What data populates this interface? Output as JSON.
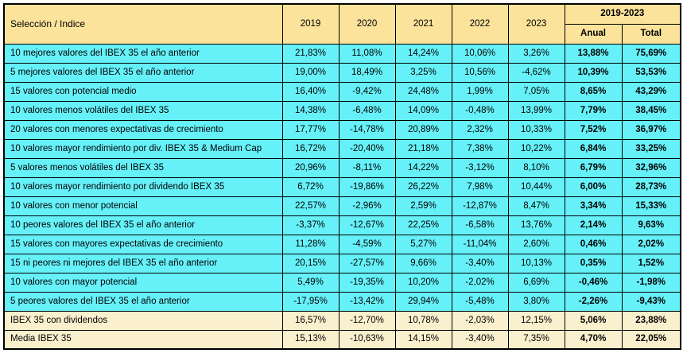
{
  "colors": {
    "header_bg": "#FBE39B",
    "data_row_bg": "#66F1F9",
    "summary_row_bg": "#FBF0CD",
    "border": "#000000",
    "text": "#000000"
  },
  "table": {
    "corner_label": "Selección / Indice",
    "year_headers": [
      "2019",
      "2020",
      "2021",
      "2022",
      "2023"
    ],
    "group_header": "2019-2023",
    "sub_headers": [
      "Anual",
      "Total"
    ],
    "rows": [
      {
        "label": "10 mejores valores del IBEX 35 el año anterior",
        "style": "data",
        "values": [
          "21,83%",
          "11,08%",
          "14,24%",
          "10,06%",
          "3,26%",
          "13,88%",
          "75,69%"
        ]
      },
      {
        "label": "5 mejores valores del IBEX 35 el año anterior",
        "style": "data",
        "values": [
          "19,00%",
          "18,49%",
          "3,25%",
          "10,56%",
          "-4,62%",
          "10,39%",
          "53,53%"
        ]
      },
      {
        "label": "15 valores con potencial medio",
        "style": "data",
        "values": [
          "16,40%",
          "-9,42%",
          "24,48%",
          "1,99%",
          "7,05%",
          "8,65%",
          "43,29%"
        ]
      },
      {
        "label": "10 valores menos volátiles del IBEX 35",
        "style": "data",
        "values": [
          "14,38%",
          "-6,48%",
          "14,09%",
          "-0,48%",
          "13,99%",
          "7,79%",
          "38,45%"
        ]
      },
      {
        "label": "20 valores con menores expectativas de crecimiento",
        "style": "data",
        "values": [
          "17,77%",
          "-14,78%",
          "20,89%",
          "2,32%",
          "10,33%",
          "7,52%",
          "36,97%"
        ]
      },
      {
        "label": "10 valores mayor rendimiento por div. IBEX 35 & Medium Cap",
        "style": "data",
        "values": [
          "16,72%",
          "-20,40%",
          "21,18%",
          "7,38%",
          "10,22%",
          "6,84%",
          "33,25%"
        ]
      },
      {
        "label": "5 valores menos volátiles del IBEX 35",
        "style": "data",
        "values": [
          "20,96%",
          "-8,11%",
          "14,22%",
          "-3,12%",
          "8,10%",
          "6,79%",
          "32,96%"
        ]
      },
      {
        "label": "10 valores mayor rendimiento por dividendo IBEX 35",
        "style": "data",
        "values": [
          "6,72%",
          "-19,86%",
          "26,22%",
          "7,98%",
          "10,44%",
          "6,00%",
          "28,73%"
        ]
      },
      {
        "label": "10 valores con menor potencial",
        "style": "data",
        "values": [
          "22,57%",
          "-2,96%",
          "2,59%",
          "-12,87%",
          "8,47%",
          "3,34%",
          "15,33%"
        ]
      },
      {
        "label": "10 peores valores del IBEX 35 el año anterior",
        "style": "data",
        "values": [
          "-3,37%",
          "-12,67%",
          "22,25%",
          "-6,58%",
          "13,76%",
          "2,14%",
          "9,63%"
        ]
      },
      {
        "label": "15 valores con mayores expectativas de crecimiento",
        "style": "data",
        "values": [
          "11,28%",
          "-4,59%",
          "5,27%",
          "-11,04%",
          "2,60%",
          "0,46%",
          "2,02%"
        ]
      },
      {
        "label": "15 ni peores ni mejores del IBEX 35 el año anterior",
        "style": "data",
        "values": [
          "20,15%",
          "-27,57%",
          "9,66%",
          "-3,40%",
          "10,13%",
          "0,35%",
          "1,52%"
        ]
      },
      {
        "label": "10 valores con mayor potencial",
        "style": "data",
        "values": [
          "5,49%",
          "-19,35%",
          "10,20%",
          "-2,02%",
          "6,69%",
          "-0,46%",
          "-1,98%"
        ]
      },
      {
        "label": "5 peores valores del IBEX 35 el año anterior",
        "style": "data",
        "values": [
          "-17,95%",
          "-13,42%",
          "29,94%",
          "-5,48%",
          "3,80%",
          "-2,26%",
          "-9,43%"
        ]
      },
      {
        "label": "IBEX 35 con dividendos",
        "style": "summary",
        "values": [
          "16,57%",
          "-12,70%",
          "10,78%",
          "-2,03%",
          "12,15%",
          "5,06%",
          "23,88%"
        ]
      },
      {
        "label": "Media IBEX 35",
        "style": "summary",
        "values": [
          "15,13%",
          "-10,63%",
          "14,15%",
          "-3,40%",
          "7,35%",
          "4,70%",
          "22,05%"
        ]
      }
    ]
  },
  "chart_data": {
    "type": "table",
    "unit": "%",
    "columns": [
      "Selección / Indice",
      "2019",
      "2020",
      "2021",
      "2022",
      "2023",
      "2019-2023 Anual",
      "2019-2023 Total"
    ],
    "rows": [
      {
        "label": "10 mejores valores del IBEX 35 el año anterior",
        "values": [
          21.83,
          11.08,
          14.24,
          10.06,
          3.26,
          13.88,
          75.69
        ]
      },
      {
        "label": "5 mejores valores del IBEX 35 el año anterior",
        "values": [
          19.0,
          18.49,
          3.25,
          10.56,
          -4.62,
          10.39,
          53.53
        ]
      },
      {
        "label": "15 valores con potencial medio",
        "values": [
          16.4,
          -9.42,
          24.48,
          1.99,
          7.05,
          8.65,
          43.29
        ]
      },
      {
        "label": "10 valores menos volátiles del IBEX 35",
        "values": [
          14.38,
          -6.48,
          14.09,
          -0.48,
          13.99,
          7.79,
          38.45
        ]
      },
      {
        "label": "20 valores con menores expectativas de crecimiento",
        "values": [
          17.77,
          -14.78,
          20.89,
          2.32,
          10.33,
          7.52,
          36.97
        ]
      },
      {
        "label": "10 valores mayor rendimiento por div. IBEX 35 & Medium Cap",
        "values": [
          16.72,
          -20.4,
          21.18,
          7.38,
          10.22,
          6.84,
          33.25
        ]
      },
      {
        "label": "5 valores menos volátiles del IBEX 35",
        "values": [
          20.96,
          -8.11,
          14.22,
          -3.12,
          8.1,
          6.79,
          32.96
        ]
      },
      {
        "label": "10 valores mayor rendimiento por dividendo IBEX 35",
        "values": [
          6.72,
          -19.86,
          26.22,
          7.98,
          10.44,
          6.0,
          28.73
        ]
      },
      {
        "label": "10 valores con menor potencial",
        "values": [
          22.57,
          -2.96,
          2.59,
          -12.87,
          8.47,
          3.34,
          15.33
        ]
      },
      {
        "label": "10 peores valores del IBEX 35 el año anterior",
        "values": [
          -3.37,
          -12.67,
          22.25,
          -6.58,
          13.76,
          2.14,
          9.63
        ]
      },
      {
        "label": "15 valores con mayores expectativas de crecimiento",
        "values": [
          11.28,
          -4.59,
          5.27,
          -11.04,
          2.6,
          0.46,
          2.02
        ]
      },
      {
        "label": "15 ni peores ni mejores del IBEX 35 el año anterior",
        "values": [
          20.15,
          -27.57,
          9.66,
          -3.4,
          10.13,
          0.35,
          1.52
        ]
      },
      {
        "label": "10 valores con mayor potencial",
        "values": [
          5.49,
          -19.35,
          10.2,
          -2.02,
          6.69,
          -0.46,
          -1.98
        ]
      },
      {
        "label": "5 peores valores del IBEX 35 el año anterior",
        "values": [
          -17.95,
          -13.42,
          29.94,
          -5.48,
          3.8,
          -2.26,
          -9.43
        ]
      },
      {
        "label": "IBEX 35 con dividendos",
        "values": [
          16.57,
          -12.7,
          10.78,
          -2.03,
          12.15,
          5.06,
          23.88
        ]
      },
      {
        "label": "Media IBEX 35",
        "values": [
          15.13,
          -10.63,
          14.15,
          -3.4,
          7.35,
          4.7,
          22.05
        ]
      }
    ]
  }
}
